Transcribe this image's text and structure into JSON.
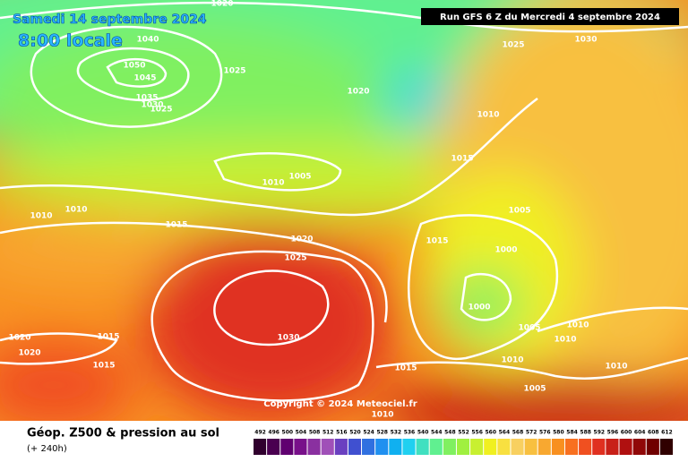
{
  "header": {
    "date": "Samedi 14 septembre 2024",
    "time": "8:00 locale",
    "run": "Run GFS 6 Z du Mercredi 4 septembre 2024"
  },
  "isobar_labels": [
    1020,
    1040,
    1050,
    1045,
    1035,
    1030,
    1025,
    1025,
    1020,
    1025,
    1030,
    1010,
    1015,
    1005,
    1010,
    1010,
    1010,
    1015,
    1020,
    1025,
    1005,
    1015,
    1000,
    1000,
    1005,
    1010,
    1010,
    1030,
    1020,
    1020,
    1015,
    1015,
    1015,
    1010,
    1010,
    1005,
    1010
  ],
  "copyright": "Copyright © 2024 Meteociel.fr",
  "footer": {
    "title": "Géop. Z500 & pression au sol",
    "lead": "(+ 240h)"
  },
  "scale": [
    {
      "value": 492,
      "color": "#30002e"
    },
    {
      "value": 496,
      "color": "#4a0050"
    },
    {
      "value": 500,
      "color": "#600070"
    },
    {
      "value": 504,
      "color": "#78108a"
    },
    {
      "value": 508,
      "color": "#8a30a0"
    },
    {
      "value": 512,
      "color": "#a050b8"
    },
    {
      "value": 516,
      "color": "#6a40c0"
    },
    {
      "value": 520,
      "color": "#4050d0"
    },
    {
      "value": 524,
      "color": "#3070e0"
    },
    {
      "value": 528,
      "color": "#2090f0"
    },
    {
      "value": 532,
      "color": "#10b0f0"
    },
    {
      "value": 536,
      "color": "#20d0f0"
    },
    {
      "value": 540,
      "color": "#40e0c0"
    },
    {
      "value": 544,
      "color": "#60f090"
    },
    {
      "value": 548,
      "color": "#80f060"
    },
    {
      "value": 552,
      "color": "#a0f040"
    },
    {
      "value": 556,
      "color": "#c8f030"
    },
    {
      "value": 560,
      "color": "#f0f020"
    },
    {
      "value": 564,
      "color": "#f8e040"
    },
    {
      "value": 568,
      "color": "#f8d060"
    },
    {
      "value": 572,
      "color": "#f8c040"
    },
    {
      "value": 576,
      "color": "#f8a830"
    },
    {
      "value": 580,
      "color": "#f89020"
    },
    {
      "value": 584,
      "color": "#f87020"
    },
    {
      "value": 588,
      "color": "#f05020"
    },
    {
      "value": 592,
      "color": "#e03020"
    },
    {
      "value": 596,
      "color": "#c82018"
    },
    {
      "value": 600,
      "color": "#b01010"
    },
    {
      "value": 604,
      "color": "#900808"
    },
    {
      "value": 608,
      "color": "#700000"
    },
    {
      "value": 612,
      "color": "#300000"
    }
  ]
}
